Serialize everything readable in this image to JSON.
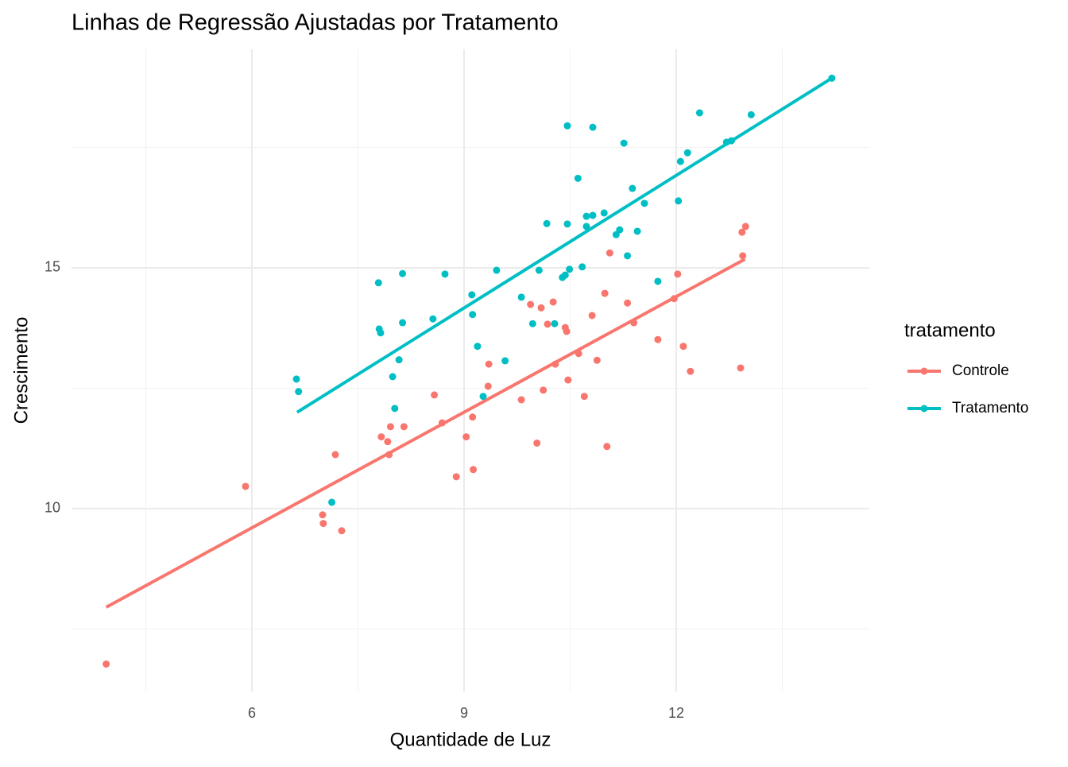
{
  "chart_data": {
    "type": "scatter",
    "title": "Linhas de Regressão Ajustadas por Tratamento",
    "x_label": "Quantidade de Luz",
    "y_label": "Crescimento",
    "legend_title": "tratamento",
    "legend_position": "right",
    "grid": true,
    "xlim": [
      3.45,
      14.73
    ],
    "ylim": [
      6.2,
      19.54
    ],
    "xticks": [
      6,
      9,
      12
    ],
    "yticks": [
      10,
      15
    ],
    "xticks_minor": [
      4.5,
      7.5,
      10.5,
      13.5
    ],
    "yticks_minor": [
      7.5,
      12.5,
      17.5
    ],
    "series": [
      {
        "name": "Controle",
        "color": "#F8766D",
        "x": [
          3.94,
          5.91,
          7.0,
          7.01,
          7.27,
          7.18,
          7.83,
          7.92,
          7.96,
          7.94,
          8.15,
          8.58,
          8.69,
          8.89,
          9.03,
          9.12,
          9.13,
          9.34,
          9.35,
          9.81,
          10.03,
          9.94,
          10.09,
          10.12,
          10.18,
          10.26,
          10.29,
          10.43,
          10.45,
          10.47,
          10.62,
          10.7,
          10.81,
          10.88,
          10.99,
          11.02,
          11.06,
          11.31,
          11.4,
          11.74,
          11.97,
          12.02,
          12.1,
          12.2,
          12.91,
          12.93,
          12.94,
          12.98
        ],
        "values": [
          6.77,
          10.46,
          9.87,
          9.69,
          9.54,
          11.12,
          11.49,
          11.39,
          11.7,
          11.12,
          11.7,
          12.36,
          11.78,
          10.66,
          11.49,
          11.9,
          10.81,
          12.54,
          13.0,
          12.26,
          11.36,
          14.24,
          14.17,
          12.46,
          13.83,
          14.29,
          13.0,
          13.76,
          13.68,
          12.67,
          13.22,
          12.33,
          14.01,
          13.08,
          14.47,
          11.29,
          15.31,
          14.27,
          13.86,
          13.51,
          14.36,
          14.87,
          13.37,
          12.85,
          12.92,
          15.74,
          15.25,
          15.86
        ],
        "fit_x": [
          3.94,
          12.97
        ],
        "fit_y": [
          7.95,
          15.18
        ]
      },
      {
        "name": "Tratamento",
        "color": "#00BFC4",
        "x": [
          6.63,
          6.66,
          7.13,
          7.79,
          7.8,
          7.82,
          7.99,
          8.02,
          8.08,
          8.13,
          8.13,
          8.56,
          8.73,
          9.11,
          9.12,
          9.19,
          9.27,
          9.46,
          9.58,
          9.81,
          10.06,
          9.97,
          10.17,
          10.28,
          10.39,
          10.43,
          10.46,
          10.46,
          10.49,
          10.61,
          10.67,
          10.73,
          10.73,
          10.82,
          10.82,
          10.98,
          11.15,
          11.2,
          11.26,
          11.31,
          11.38,
          11.45,
          11.55,
          11.74,
          12.03,
          12.06,
          12.16,
          12.33,
          12.71,
          12.78,
          13.06,
          14.2
        ],
        "values": [
          12.69,
          12.43,
          10.13,
          14.69,
          13.73,
          13.65,
          12.74,
          12.08,
          13.09,
          13.86,
          14.88,
          13.94,
          14.87,
          14.44,
          14.03,
          13.37,
          12.33,
          14.95,
          13.07,
          14.39,
          14.95,
          13.84,
          15.92,
          13.84,
          14.8,
          14.85,
          17.95,
          15.91,
          14.97,
          16.86,
          15.02,
          15.86,
          16.07,
          16.09,
          17.92,
          16.14,
          15.69,
          15.79,
          17.59,
          15.25,
          16.65,
          15.76,
          16.34,
          14.72,
          16.39,
          17.21,
          17.39,
          18.22,
          17.61,
          17.64,
          18.18,
          18.94
        ],
        "fit_x": [
          6.64,
          14.2
        ],
        "fit_y": [
          12.0,
          18.94
        ]
      }
    ]
  }
}
